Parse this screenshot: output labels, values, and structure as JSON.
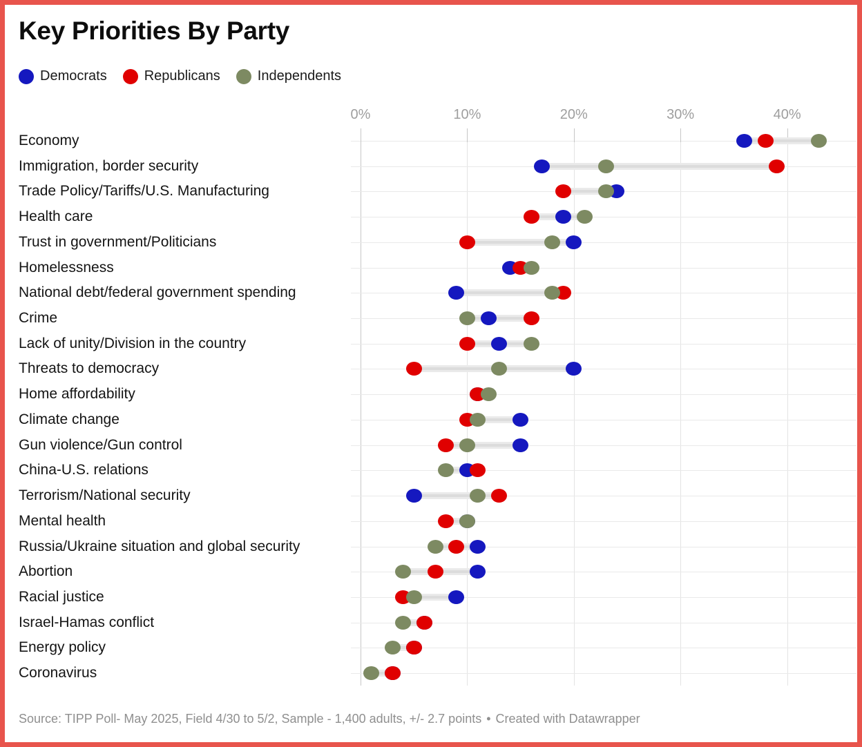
{
  "header": {
    "title": "Key Priorities By Party"
  },
  "legend": [
    {
      "label": "Democrats",
      "color": "#1518bf"
    },
    {
      "label": "Republicans",
      "color": "#e00000"
    },
    {
      "label": "Independents",
      "color": "#7d8a62"
    }
  ],
  "chart_data": {
    "type": "scatter",
    "subtype": "dot-range-plot",
    "title": "Key Priorities By Party",
    "unit": "%",
    "x_ticks": [
      0,
      10,
      20,
      30,
      40
    ],
    "x_tick_labels": [
      "0%",
      "10%",
      "20%",
      "30%",
      "40%"
    ],
    "xlim": [
      0,
      46.5
    ],
    "grid": true,
    "legend_position": "top-left",
    "categories": [
      "Economy",
      "Immigration, border security",
      "Trade Policy/Tariffs/U.S. Manufacturing",
      "Health care",
      "Trust in government/Politicians",
      "Homelessness",
      "National debt/federal government spending",
      "Crime",
      "Lack of unity/Division in the country",
      "Threats to democracy",
      "Home affordability",
      "Climate change",
      "Gun violence/Gun control",
      "China-U.S. relations",
      "Terrorism/National security",
      "Mental health",
      "Russia/Ukraine situation and global security",
      "Abortion",
      "Racial justice",
      "Israel-Hamas conflict",
      "Energy policy",
      "Coronavirus"
    ],
    "series": [
      {
        "name": "Democrats",
        "color": "#1518bf",
        "values": [
          36,
          17,
          24,
          19,
          20,
          14,
          9,
          12,
          13,
          20,
          11,
          15,
          15,
          10,
          5,
          10,
          11,
          11,
          9,
          6,
          5,
          3
        ]
      },
      {
        "name": "Republicans",
        "color": "#e00000",
        "values": [
          38,
          39,
          19,
          16,
          10,
          15,
          19,
          16,
          10,
          5,
          11,
          10,
          8,
          11,
          13,
          8,
          9,
          7,
          4,
          6,
          5,
          3
        ]
      },
      {
        "name": "Independents",
        "color": "#7d8a62",
        "values": [
          43,
          23,
          23,
          21,
          18,
          16,
          18,
          10,
          16,
          13,
          12,
          11,
          10,
          8,
          11,
          10,
          7,
          4,
          5,
          4,
          3,
          1
        ]
      }
    ]
  },
  "footer": {
    "source": "Source: TIPP Poll- May 2025, Field 4/30 to 5/2, Sample - 1,400 adults, +/- 2.7 points",
    "separator": "•",
    "credit": "Created with Datawrapper"
  },
  "colors": {
    "frame": "#e8544c",
    "grid_light": "#e3e3e3",
    "grid_dark": "#c6c6c6",
    "row_line": "#e9e9e9",
    "bar": "#eaeaea",
    "bar_core": "#dcdcdc",
    "axis_text": "#9e9e9e",
    "footer_text": "#8f8f8f",
    "label_text": "#141414"
  }
}
